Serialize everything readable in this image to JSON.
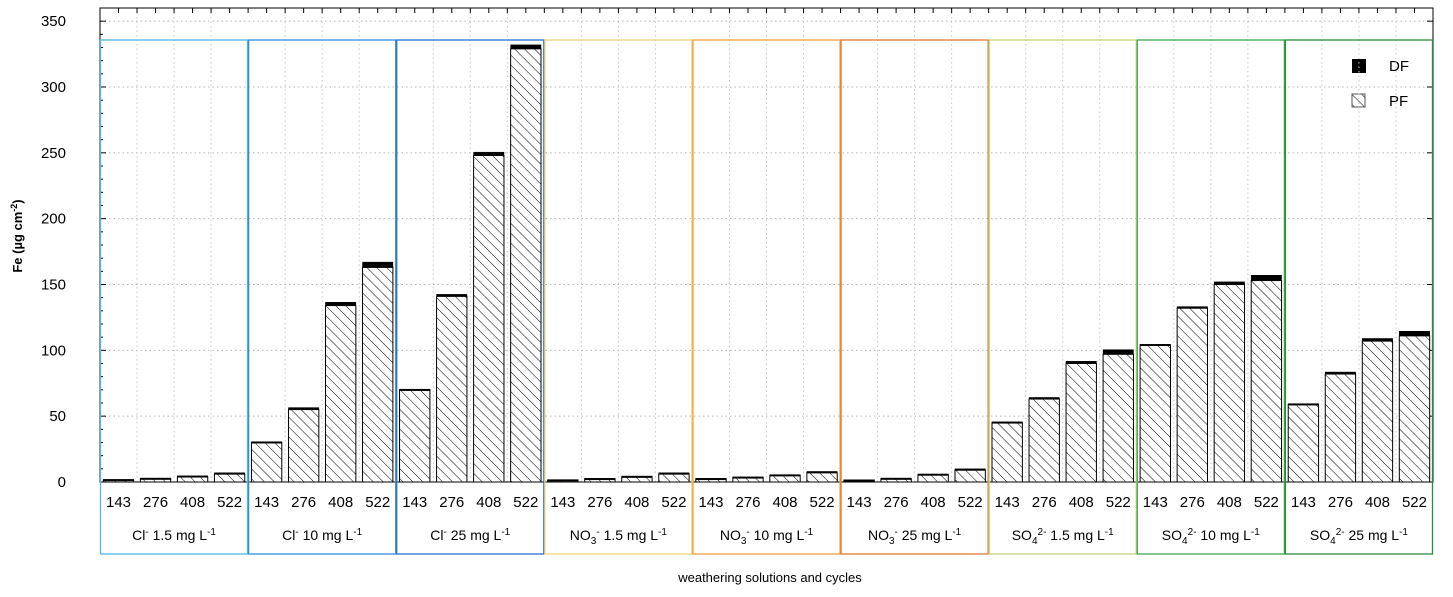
{
  "chart_data": {
    "type": "bar",
    "stacked": true,
    "title": "",
    "xlabel": "weathering solutions and cycles",
    "ylabel": {
      "prefix": "Fe (µg cm",
      "sup": "-2",
      "suffix": ")"
    },
    "ylim": [
      0,
      360
    ],
    "yticks": [
      0,
      50,
      100,
      150,
      200,
      250,
      300,
      350
    ],
    "grid": true,
    "legend_position": "top-right",
    "cycles": [
      "143",
      "276",
      "408",
      "522"
    ],
    "groups": [
      {
        "ion": "Cl",
        "ion_sub": "",
        "ion_sup": "-",
        "conc": "1.5 mg L",
        "conc_sup": "-1",
        "color": "#4cb8e6"
      },
      {
        "ion": "Cl",
        "ion_sub": "",
        "ion_sup": "-",
        "conc": "10 mg L",
        "conc_sup": "-1",
        "color": "#2f8fdc"
      },
      {
        "ion": "Cl",
        "ion_sub": "",
        "ion_sup": "-",
        "conc": "25 mg L",
        "conc_sup": "-1",
        "color": "#2a6fd0"
      },
      {
        "ion": "NO",
        "ion_sub": "3",
        "ion_sup": "-",
        "conc": "1.5 mg L",
        "conc_sup": "-1",
        "color": "#f2d372"
      },
      {
        "ion": "NO",
        "ion_sub": "3",
        "ion_sup": "-",
        "conc": "10 mg L",
        "conc_sup": "-1",
        "color": "#f0a040"
      },
      {
        "ion": "NO",
        "ion_sub": "3",
        "ion_sup": "-",
        "conc": "25 mg L",
        "conc_sup": "-1",
        "color": "#e07838"
      },
      {
        "ion": "SO",
        "ion_sub": "4",
        "ion_sup": "2-",
        "conc": "1.5 mg L",
        "conc_sup": "-1",
        "color": "#c2d47a"
      },
      {
        "ion": "SO",
        "ion_sub": "4",
        "ion_sup": "2-",
        "conc": "10 mg L",
        "conc_sup": "-1",
        "color": "#3fa850"
      },
      {
        "ion": "SO",
        "ion_sub": "4",
        "ion_sup": "2-",
        "conc": "25 mg L",
        "conc_sup": "-1",
        "color": "#2e8a3e"
      }
    ],
    "series": [
      {
        "name": "DF",
        "fill": "#000000",
        "values": [
          [
            0.5,
            0.5,
            0.7,
            1.0
          ],
          [
            0.6,
            1.5,
            2.5,
            4.0
          ],
          [
            0.5,
            1.5,
            2.5,
            3.0
          ],
          [
            0.3,
            0.3,
            0.5,
            1.0
          ],
          [
            0.3,
            0.4,
            0.6,
            1.0
          ],
          [
            0.2,
            0.5,
            0.6,
            1.0
          ],
          [
            0.7,
            1.2,
            1.7,
            3.5
          ],
          [
            0.6,
            1.2,
            2.0,
            4.0
          ],
          [
            0.5,
            1.5,
            2.0,
            3.5
          ]
        ]
      },
      {
        "name": "PF",
        "fill": "hatched",
        "values": [
          [
            1.5,
            2.5,
            4.0,
            6.0
          ],
          [
            30,
            55,
            134,
            163
          ],
          [
            70,
            141,
            248,
            329
          ],
          [
            1.5,
            2.5,
            4.0,
            6.0
          ],
          [
            2.5,
            3.5,
            5.0,
            7.0
          ],
          [
            1.5,
            2.5,
            5.5,
            9.0
          ],
          [
            45,
            63,
            90,
            97
          ],
          [
            104,
            132,
            150,
            153
          ],
          [
            59,
            82,
            107,
            111
          ]
        ]
      }
    ]
  }
}
